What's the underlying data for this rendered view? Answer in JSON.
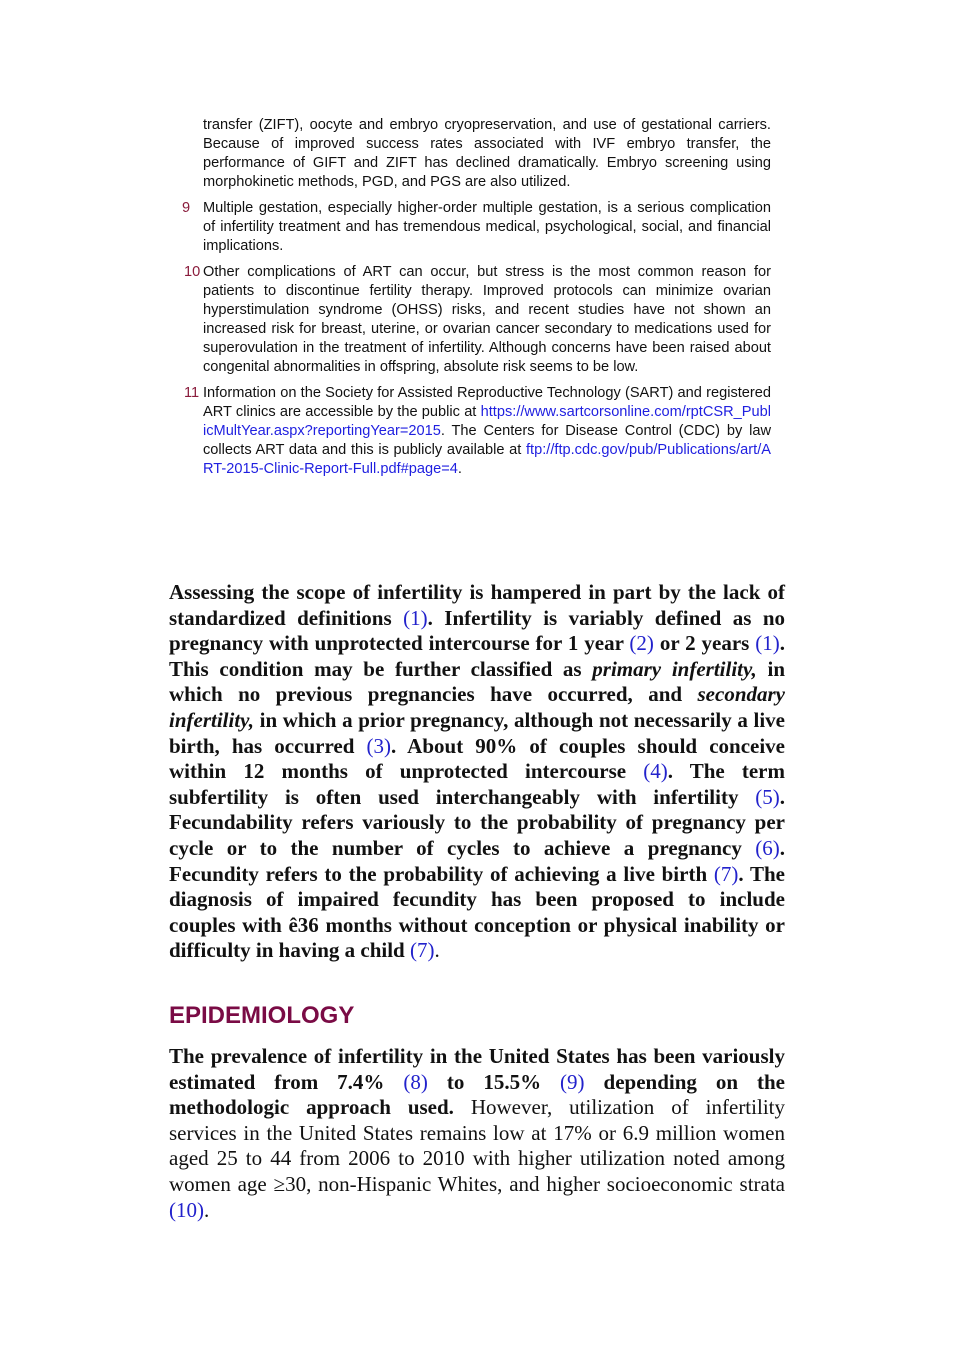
{
  "notes": [
    {
      "text": "transfer (ZIFT), oocyte and embryo cryopreservation, and use of gestational carriers. Because of improved success rates associated with IVF embryo transfer, the performance of GIFT and ZIFT has declined dramatically. Embryo screening using morphokinetic methods, PGD, and PGS are also utilized."
    },
    {
      "number": "9",
      "text": "Multiple gestation, especially higher-order multiple gestation, is a serious complication of infertility treatment and has tremendous medical, psychological, social, and financial implications."
    },
    {
      "number": "10",
      "text": "Other complications of ART can occur, but stress is the most common reason for patients to discontinue fertility therapy. Improved protocols can minimize ovarian hyperstimulation syndrome (OHSS) risks, and recent studies have not shown an increased risk for breast, uterine, or ovarian cancer secondary to medications used for superovulation in the treatment of infertility. Although concerns have been raised about congenital abnormalities in offspring, absolute risk seems to be low."
    },
    {
      "number": "11",
      "runs": [
        "Information on the Society for Assisted Reproductive Technology (SART) and registered ART clinics are accessible by the public at ",
        "https://www.sartcorsonline.com/rptCSR_PublicMultYear.aspx?reportingYear=2015",
        ". The Centers for Disease Control (CDC) by law collects ART data and this is publicly available at ",
        "ftp://ftp.cdc.gov/pub/Publications/art/ART-2015-Clinic-Report-Full.pdf#page=4",
        "."
      ]
    }
  ],
  "paragraph_1": [
    "Assessing the scope of infertility is hampered in part by the lack of standardized definitions ",
    "(1)",
    ". Infertility is variably defined as no pregnancy with unprotected intercourse for 1 year ",
    "(2)",
    " or 2 years ",
    "(1)",
    ". This condition may be further classified as ",
    "primary infertility,",
    " in which no previous pregnancies have occurred, and ",
    "secondary infertility,",
    " in which a prior pregnancy, although not necessarily a live birth, has occurred ",
    "(3)",
    ". About 90% of couples should conceive within 12 months of unprotected intercourse ",
    "(4)",
    ". The term subfertility is often used interchangeably with infertility ",
    "(5)",
    ". Fecundability refers variously to the probability of pregnancy per cycle or to the number of cycles to achieve a pregnancy ",
    "(6)",
    ". Fecundity refers to the probability of achieving a live birth ",
    "(7)",
    ". The diagnosis of impaired fecundity has been proposed to include couples with ê36 months without conception or physical inability or difficulty in having a child ",
    "(7)",
    "."
  ],
  "heading": "EPIDEMIOLOGY",
  "paragraph_2": [
    "The prevalence of infertility in the United States has been variously estimated from 7.4% ",
    "(8)",
    " to 15.5% ",
    "(9)",
    " depending on the methodologic approach used.",
    " However, utilization of infertility services in the United States remains low at 17% or 6.9 million women aged 25 to 44 from 2006 to 2010 with higher utilization noted among women age ≥30, non-Hispanic Whites, and higher socioeconomic strata ",
    "(10)",
    "."
  ]
}
